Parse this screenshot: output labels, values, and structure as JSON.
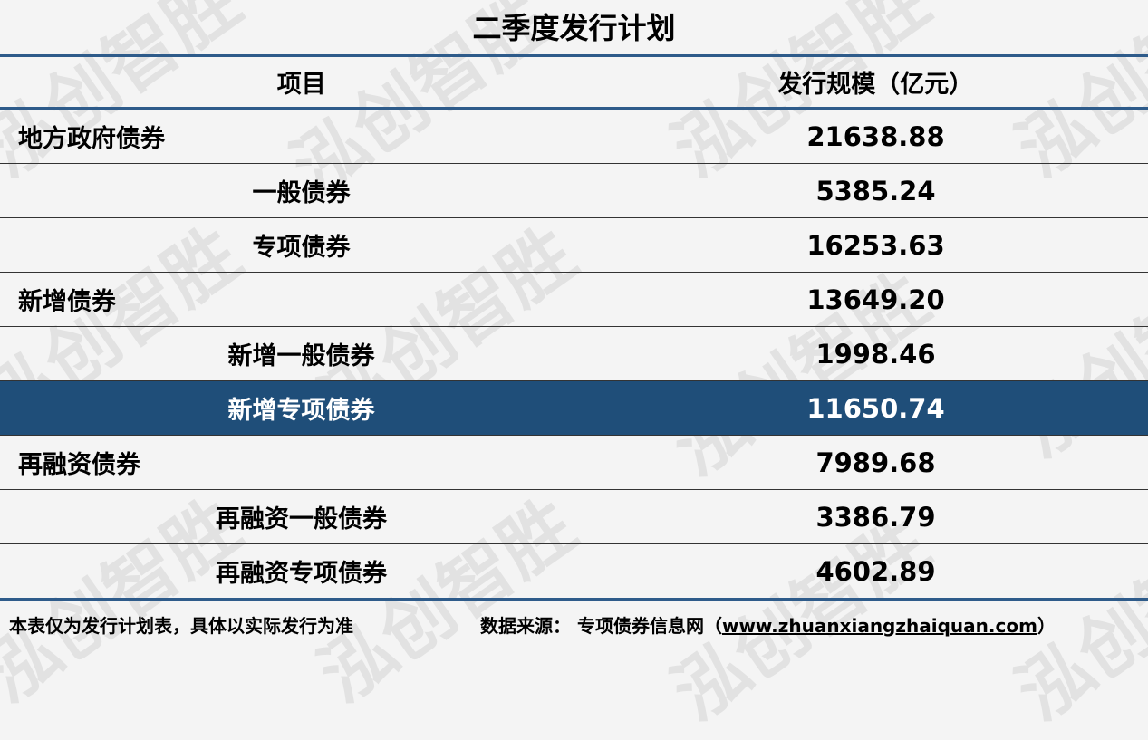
{
  "watermark": "泓创智胜",
  "title": "二季度发行计划",
  "table": {
    "headers": [
      "项目",
      "发行规模（亿元）"
    ],
    "rows": [
      {
        "item": "地方政府债券",
        "value": "21638.88",
        "level": 0,
        "highlight": false
      },
      {
        "item": "一般债券",
        "value": "5385.24",
        "level": 1,
        "highlight": false
      },
      {
        "item": "专项债券",
        "value": "16253.63",
        "level": 1,
        "highlight": false
      },
      {
        "item": "新增债券",
        "value": "13649.20",
        "level": 0,
        "highlight": false
      },
      {
        "item": "新增一般债券",
        "value": "1998.46",
        "level": 1,
        "highlight": false
      },
      {
        "item": "新增专项债券",
        "value": "11650.74",
        "level": 1,
        "highlight": true
      },
      {
        "item": "再融资债券",
        "value": "7989.68",
        "level": 0,
        "highlight": false
      },
      {
        "item": "再融资一般债券",
        "value": "3386.79",
        "level": 1,
        "highlight": false
      },
      {
        "item": "再融资专项债券",
        "value": "4602.89",
        "level": 1,
        "highlight": false
      }
    ]
  },
  "footer": {
    "note": "本表仅为发行计划表，具体以实际发行为准",
    "source_label": "数据来源：",
    "source_name": "专项债券信息网（",
    "source_url": "www.zhuanxiangzhaiquan.com",
    "source_close": "）"
  },
  "colors": {
    "highlight": "#1f4e79",
    "border_accent": "#2e5b8a"
  }
}
